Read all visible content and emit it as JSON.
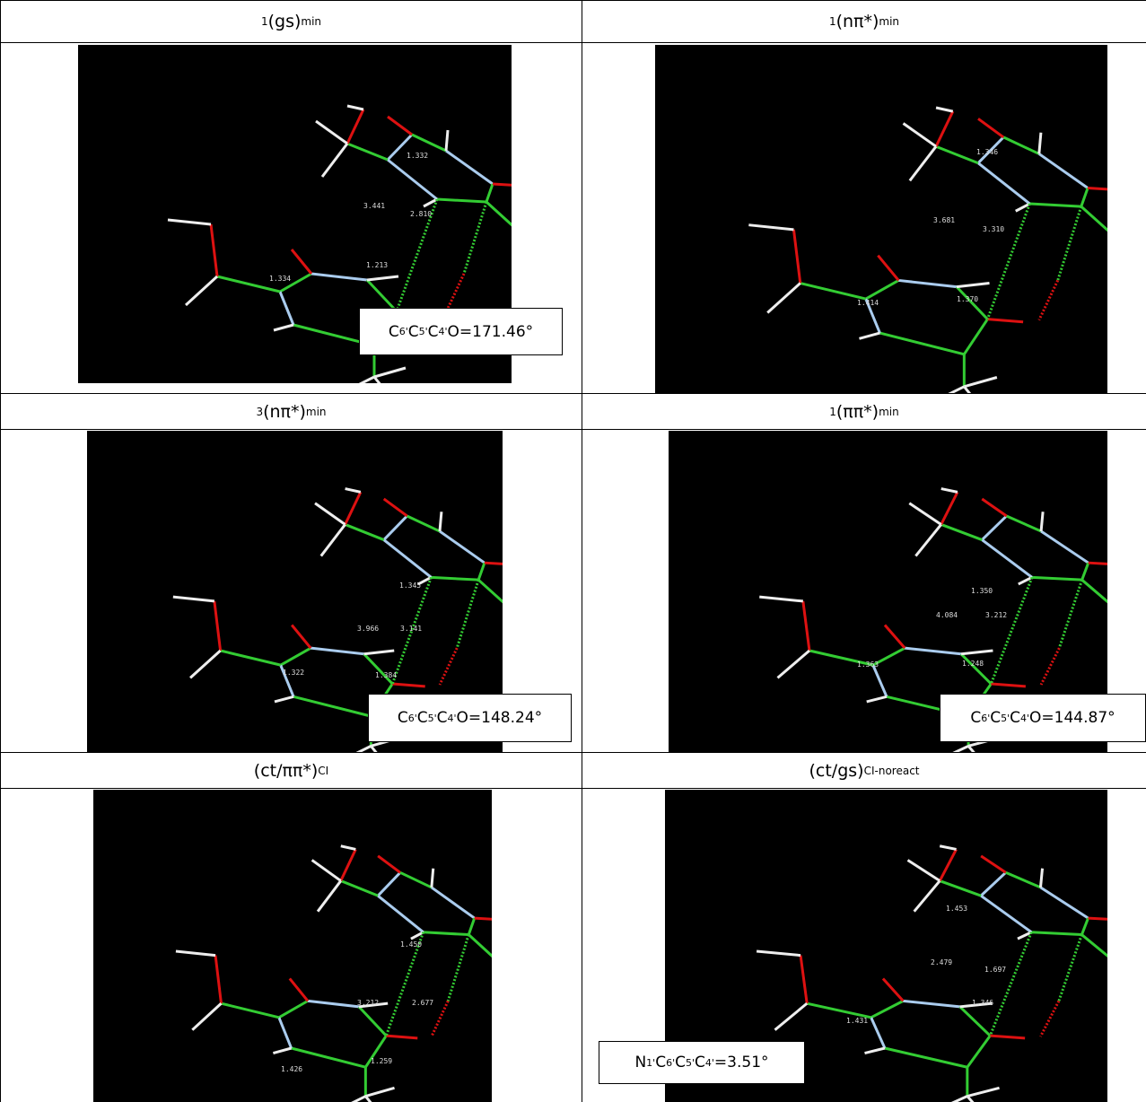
{
  "cells": [
    {
      "heading": {
        "sup": "1",
        "text": "(gs)",
        "sub": "min"
      },
      "distances": [
        "1.332",
        "3.441",
        "2.810",
        "1.213",
        "1.334"
      ],
      "angle": [
        {
          "t": "C",
          "sub": "6'"
        },
        {
          "t": "C",
          "sub": "5'"
        },
        {
          "t": "C",
          "sub": "4'"
        },
        {
          "t": "O=171.46°"
        }
      ]
    },
    {
      "heading": {
        "sup": "1",
        "text": "(nπ*)",
        "sub": "min"
      },
      "distances": [
        "1.346",
        "3.681",
        "3.310",
        "1.370",
        "1.414"
      ]
    },
    {
      "heading": {
        "sup": "3",
        "text": "(nπ*)",
        "sub": "min"
      },
      "distances": [
        "1.345",
        "3.966",
        "3.141",
        "1.384",
        "1.322"
      ],
      "angle": [
        {
          "t": "C",
          "sub": "6'"
        },
        {
          "t": "C",
          "sub": "5'"
        },
        {
          "t": "C",
          "sub": "4'"
        },
        {
          "t": "O=148.24°"
        }
      ]
    },
    {
      "heading": {
        "sup": "1",
        "text": "(ππ*)",
        "sub": "min"
      },
      "distances": [
        "1.350",
        "4.084",
        "3.212",
        "1.248",
        "1.363"
      ],
      "angle": [
        {
          "t": "C",
          "sub": "6'"
        },
        {
          "t": "C",
          "sub": "5'"
        },
        {
          "t": "C",
          "sub": "4'"
        },
        {
          "t": "O=144.87°"
        }
      ]
    },
    {
      "heading": {
        "text": "(ct/ππ*)",
        "sub": "CI"
      },
      "distances": [
        "1.450",
        "3.212",
        "2.677",
        "1.259",
        "1.426"
      ]
    },
    {
      "heading": {
        "text": "(ct/gs)",
        "sub": "CI-noreact"
      },
      "distances": [
        "1.453",
        "2.479",
        "1.697",
        "1.346",
        "1.431"
      ],
      "angle": [
        {
          "t": "N",
          "sub": "1'"
        },
        {
          "t": "C",
          "sub": "6'"
        },
        {
          "t": "C",
          "sub": "5'"
        },
        {
          "t": "C",
          "sub": "4'"
        },
        {
          "t": "=3.51°"
        }
      ]
    }
  ]
}
